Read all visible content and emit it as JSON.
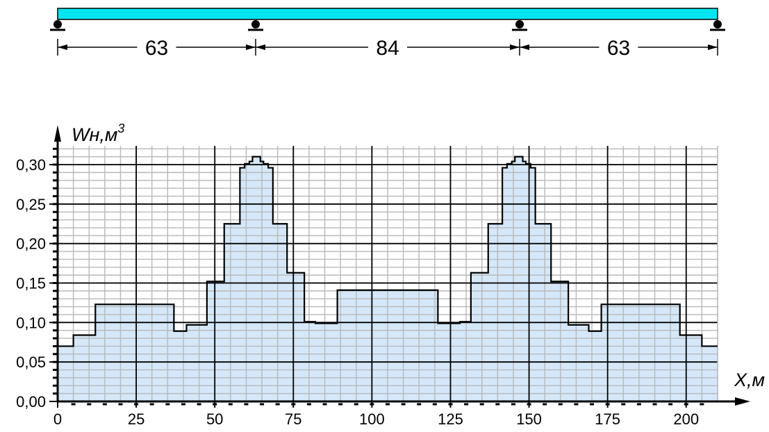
{
  "beam": {
    "spans": [
      63,
      84,
      63
    ],
    "span_labels": [
      "63",
      "84",
      "63"
    ],
    "support_x": [
      0,
      63,
      147,
      210
    ],
    "colors": {
      "beam_fill": "#00e5f0",
      "outline": "#000000"
    }
  },
  "chart_data": {
    "type": "area",
    "step": true,
    "xlabel": "X,м",
    "ylabel_main": "Wн,м",
    "ylabel_sup": "3",
    "xlim": [
      0,
      210
    ],
    "ylim": [
      0,
      0.3
    ],
    "x_ticks": [
      0,
      25,
      50,
      75,
      100,
      125,
      150,
      175,
      200
    ],
    "x_tick_labels": [
      "0",
      "25",
      "50",
      "75",
      "100",
      "125",
      "150",
      "175",
      "200"
    ],
    "y_ticks": [
      0,
      0.05,
      0.1,
      0.15,
      0.2,
      0.25,
      0.3
    ],
    "y_tick_labels": [
      "0,00",
      "0,05",
      "0,10",
      "0,15",
      "0,20",
      "0,25",
      "0,30"
    ],
    "grid": {
      "major_x_step": 25,
      "major_y_step": 0.05,
      "minor_x_step": 5,
      "minor_y_step": 0.01
    },
    "segments": [
      {
        "x0": 0,
        "x1": 5,
        "y": 0.07
      },
      {
        "x0": 5,
        "x1": 12,
        "y": 0.084
      },
      {
        "x0": 12,
        "x1": 37,
        "y": 0.123
      },
      {
        "x0": 37,
        "x1": 41,
        "y": 0.089
      },
      {
        "x0": 41,
        "x1": 47.5,
        "y": 0.097
      },
      {
        "x0": 47.5,
        "x1": 53,
        "y": 0.152
      },
      {
        "x0": 53,
        "x1": 58,
        "y": 0.225
      },
      {
        "x0": 58,
        "x1": 59.5,
        "y": 0.296
      },
      {
        "x0": 59.5,
        "x1": 61,
        "y": 0.301
      },
      {
        "x0": 61,
        "x1": 62,
        "y": 0.304
      },
      {
        "x0": 62,
        "x1": 64.5,
        "y": 0.31
      },
      {
        "x0": 64.5,
        "x1": 65.5,
        "y": 0.304
      },
      {
        "x0": 65.5,
        "x1": 67,
        "y": 0.301
      },
      {
        "x0": 67,
        "x1": 68.5,
        "y": 0.296
      },
      {
        "x0": 68.5,
        "x1": 73,
        "y": 0.225
      },
      {
        "x0": 73,
        "x1": 78.5,
        "y": 0.163
      },
      {
        "x0": 78.5,
        "x1": 82,
        "y": 0.101
      },
      {
        "x0": 82,
        "x1": 89,
        "y": 0.099
      },
      {
        "x0": 89,
        "x1": 121,
        "y": 0.141
      },
      {
        "x0": 121,
        "x1": 128,
        "y": 0.099
      },
      {
        "x0": 128,
        "x1": 131.5,
        "y": 0.101
      },
      {
        "x0": 131.5,
        "x1": 137,
        "y": 0.163
      },
      {
        "x0": 137,
        "x1": 141.5,
        "y": 0.225
      },
      {
        "x0": 141.5,
        "x1": 143,
        "y": 0.296
      },
      {
        "x0": 143,
        "x1": 144.5,
        "y": 0.301
      },
      {
        "x0": 144.5,
        "x1": 145.5,
        "y": 0.304
      },
      {
        "x0": 145.5,
        "x1": 148,
        "y": 0.31
      },
      {
        "x0": 148,
        "x1": 149,
        "y": 0.304
      },
      {
        "x0": 149,
        "x1": 150.5,
        "y": 0.301
      },
      {
        "x0": 150.5,
        "x1": 152,
        "y": 0.296
      },
      {
        "x0": 152,
        "x1": 157,
        "y": 0.225
      },
      {
        "x0": 157,
        "x1": 162.5,
        "y": 0.152
      },
      {
        "x0": 162.5,
        "x1": 169,
        "y": 0.097
      },
      {
        "x0": 169,
        "x1": 173,
        "y": 0.089
      },
      {
        "x0": 173,
        "x1": 198,
        "y": 0.123
      },
      {
        "x0": 198,
        "x1": 205,
        "y": 0.084
      },
      {
        "x0": 205,
        "x1": 210,
        "y": 0.07
      }
    ],
    "colors": {
      "fill": "#d4e8fa",
      "line": "#000000",
      "major_grid": "#000000",
      "minor_grid": "#b8b8b8"
    }
  }
}
